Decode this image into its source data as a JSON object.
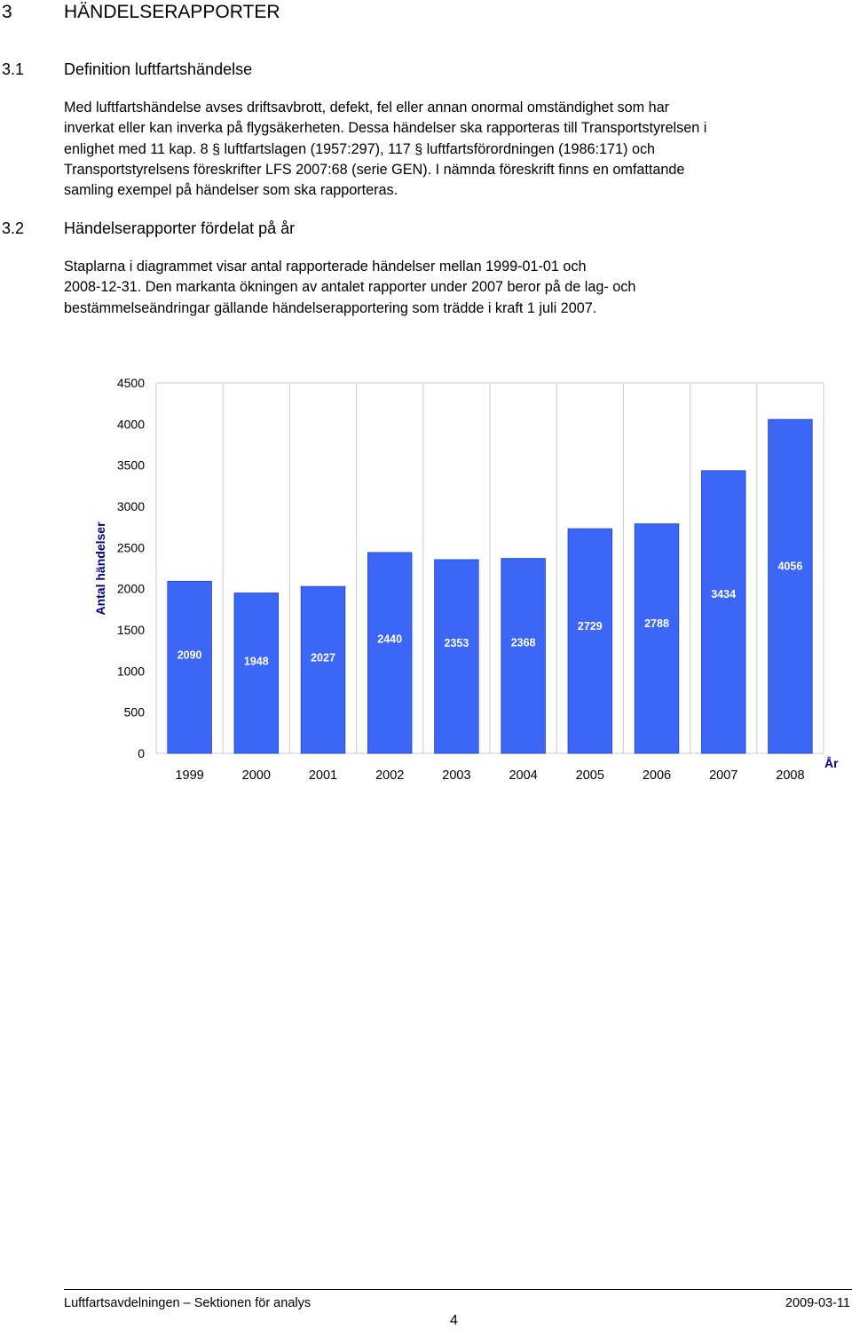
{
  "section": {
    "number": "3",
    "title": "HÄNDELSERAPPORTER"
  },
  "subsection1": {
    "number": "3.1",
    "title": "Definition luftfartshändelse",
    "lines": [
      "Med luftfartshändelse avses driftsavbrott, defekt, fel eller annan onormal omständighet som har",
      "inverkat eller kan inverka på flygsäkerheten. Dessa händelser ska rapporteras till Transportstyrelsen i",
      [
        "enlighet med 11 kap. 8 ",
        "§",
        " luftfartslagen (1957:297), 117 ",
        "§",
        " luftfartsförordningen (1986:171) och"
      ],
      "Transportstyrelsens föreskrifter LFS 2007:68 (serie GEN). I nämnda föreskrift finns en omfattande",
      "samling exempel på händelser som ska rapporteras."
    ]
  },
  "subsection2": {
    "number": "3.2",
    "title": "Händelserapporter fördelat på år",
    "lines": [
      "Staplarna i diagrammet visar antal rapporterade händelser mellan 1999-01-01 och",
      "2008-12-31. Den markanta ökningen av antalet rapporter under 2007 beror på de lag- och",
      "bestämmelseändringar gällande händelserapportering som trädde i kraft 1 juli 2007."
    ]
  },
  "chart_data": {
    "type": "bar",
    "categories": [
      "1999",
      "2000",
      "2001",
      "2002",
      "2003",
      "2004",
      "2005",
      "2006",
      "2007",
      "2008"
    ],
    "values": [
      2090,
      1948,
      2027,
      2440,
      2353,
      2368,
      2729,
      2788,
      3434,
      4056
    ],
    "data_labels": [
      "2090",
      "1948",
      "2027",
      "2440",
      "2353",
      "2368",
      "2729",
      "2788",
      "3434",
      "4056"
    ],
    "ylabel": "Antal händelser",
    "xlabel": "År",
    "ylim": [
      0,
      4500
    ],
    "yticks": [
      "0",
      "500",
      "1000",
      "1500",
      "2000",
      "2500",
      "3000",
      "3500",
      "4000",
      "4500"
    ],
    "grid": "vertical lines between categories",
    "legend": "none",
    "bar_color": "#3c66f6",
    "label_color": "#ffffff"
  },
  "footer": {
    "left": "Luftfartsavdelningen – Sektionen för analys",
    "right": "2009-03-11",
    "page": "4"
  }
}
